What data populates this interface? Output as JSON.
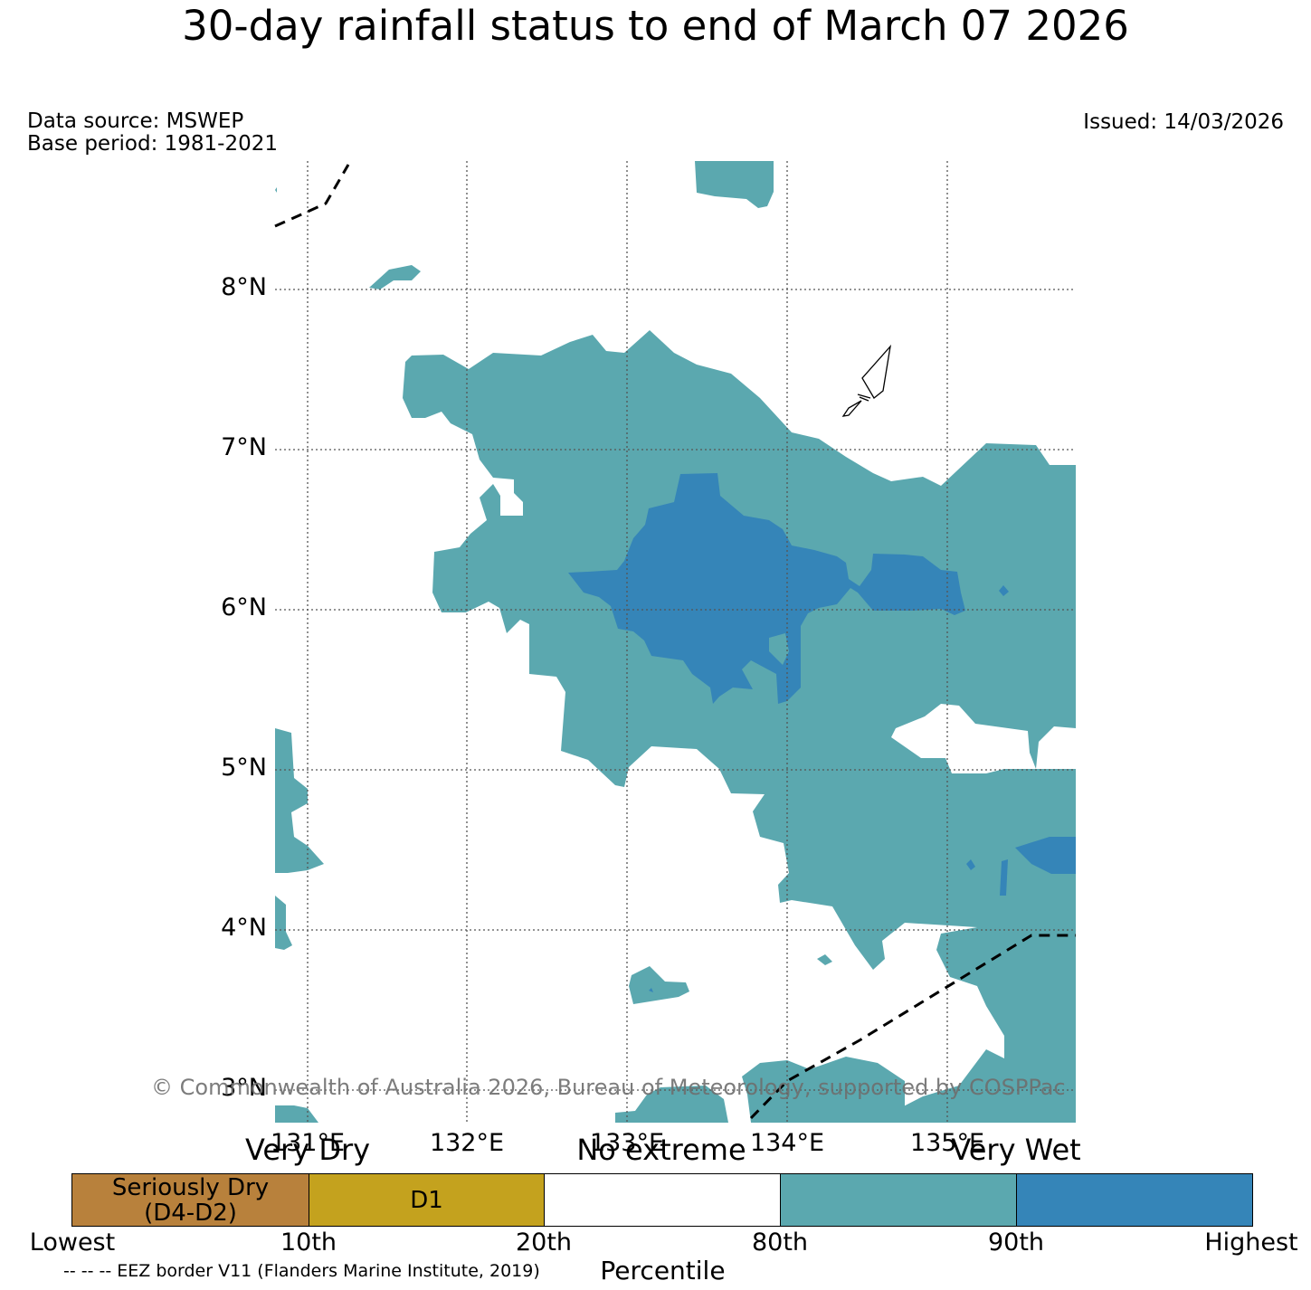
{
  "title": "30-day rainfall status to end of March 07 2026",
  "data_source": "Data source: MSWEP",
  "base_period": "Base period: 1981-2021",
  "issued": "Issued: 14/03/2026",
  "lat_labels": [
    "8°N",
    "7°N",
    "6°N",
    "5°N",
    "4°N",
    "3°N"
  ],
  "lon_labels": [
    "131°E",
    "132°E",
    "133°E",
    "134°E",
    "135°E"
  ],
  "copyright": "© Commonwealth of Australia 2026, Bureau of Meteorology, supported by COSPPac",
  "legend": {
    "categories": [
      "Very Dry",
      "No extreme",
      "Very Wet"
    ],
    "segments": [
      {
        "label": "Seriously Dry\n(D4-D2)",
        "color": "#b8813c"
      },
      {
        "label": "D1",
        "color": "#c4a21e"
      },
      {
        "label": "",
        "color": "#ffffff"
      },
      {
        "label": "",
        "color": "#5ba8af"
      },
      {
        "label": "",
        "color": "#3585b8"
      }
    ],
    "ticks": [
      "Lowest",
      "10th",
      "20th",
      "80th",
      "90th",
      "Highest"
    ],
    "axis_label": "Percentile"
  },
  "eez_note": "-- -- -- EEZ border V11 (Flanders Marine Institute, 2019)",
  "colors": {
    "very_wet": "#3585b8",
    "wet": "#5ba8af",
    "eez": "#000000"
  }
}
